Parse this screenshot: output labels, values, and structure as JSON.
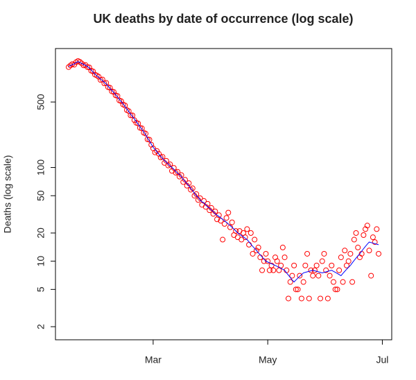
{
  "chart_data": {
    "type": "scatter",
    "title": "UK deaths by date of occurrence (log scale)",
    "y_label": "Deaths (log scale)",
    "ylog": true,
    "xlim": [
      8,
      187
    ],
    "ylim": [
      1.45,
      1860
    ],
    "xticks": [
      {
        "value": 60,
        "label": "Mar"
      },
      {
        "value": 121,
        "label": "May"
      },
      {
        "value": 182,
        "label": "Jul"
      }
    ],
    "yticks": [
      2,
      5,
      10,
      20,
      50,
      100,
      500
    ],
    "x": [
      15,
      16,
      17,
      18,
      19,
      20,
      21,
      22,
      23,
      24,
      25,
      26,
      27,
      28,
      29,
      30,
      31,
      32,
      33,
      34,
      35,
      36,
      37,
      38,
      39,
      40,
      41,
      42,
      43,
      44,
      45,
      46,
      47,
      48,
      49,
      50,
      51,
      52,
      53,
      54,
      55,
      56,
      57,
      58,
      59,
      60,
      61,
      62,
      63,
      64,
      65,
      66,
      67,
      68,
      69,
      70,
      71,
      72,
      73,
      74,
      75,
      76,
      77,
      78,
      79,
      80,
      81,
      82,
      83,
      84,
      85,
      86,
      87,
      88,
      89,
      90,
      91,
      92,
      93,
      94,
      95,
      96,
      97,
      98,
      99,
      100,
      101,
      102,
      103,
      104,
      105,
      106,
      107,
      108,
      109,
      110,
      111,
      112,
      113,
      114,
      115,
      116,
      117,
      118,
      119,
      120,
      121,
      122,
      123,
      124,
      125,
      126,
      127,
      128,
      129,
      130,
      131,
      132,
      133,
      134,
      135,
      136,
      137,
      138,
      139,
      140,
      141,
      142,
      143,
      144,
      145,
      146,
      147,
      148,
      149,
      150,
      151,
      152,
      153,
      154,
      155,
      156,
      157,
      158,
      159,
      160,
      161,
      162,
      163,
      164,
      165,
      166,
      167,
      168,
      169,
      170,
      171,
      172,
      173,
      174,
      175,
      176,
      177,
      178,
      179,
      180
    ],
    "series": [
      {
        "type": "scatter",
        "color": "#ff0000",
        "values": [
          1180,
          1230,
          1270,
          1250,
          1330,
          1370,
          1340,
          1290,
          1230,
          1240,
          1180,
          1170,
          1080,
          1060,
          980,
          960,
          930,
          860,
          870,
          790,
          800,
          720,
          710,
          650,
          640,
          590,
          580,
          520,
          510,
          470,
          460,
          410,
          400,
          360,
          360,
          320,
          300,
          295,
          265,
          262,
          235,
          230,
          200,
          198,
          175,
          160,
          145,
          150,
          140,
          128,
          130,
          112,
          118,
          105,
          108,
          92,
          99,
          88,
          90,
          80,
          83,
          70,
          74,
          64,
          68,
          58,
          60,
          50,
          52,
          45,
          47,
          40,
          44,
          38,
          41,
          35,
          37,
          32,
          34,
          28,
          31,
          27,
          17,
          25,
          29,
          33,
          23,
          26,
          19,
          21,
          18,
          21,
          17,
          20,
          18,
          22,
          15,
          20,
          12,
          17,
          13,
          14,
          11,
          8,
          10,
          12,
          10,
          8,
          9,
          8,
          11,
          10,
          8,
          9,
          14,
          11,
          8,
          4,
          6,
          7,
          9,
          5,
          5,
          7,
          4,
          6,
          9,
          12,
          4,
          8,
          7,
          8,
          9,
          7,
          4,
          10,
          12,
          8,
          4,
          7,
          9,
          6,
          5,
          5,
          8,
          11,
          6,
          13,
          9,
          10,
          12,
          6,
          17,
          20,
          14,
          11,
          12,
          19,
          22,
          24,
          13,
          7,
          18,
          16,
          22,
          12
        ]
      },
      {
        "type": "line",
        "color": "#0000ff",
        "values": [
          1200,
          1225,
          1250,
          1280,
          1315,
          1350,
          1318,
          1287,
          1257,
          1228,
          1200,
          1150,
          1100,
          1045,
          995,
          950,
          915,
          880,
          845,
          812,
          780,
          738,
          700,
          665,
          632,
          600,
          566,
          535,
          505,
          477,
          450,
          422,
          396,
          372,
          350,
          330,
          309,
          290,
          272,
          256,
          240,
          223,
          207,
          192,
          178,
          165,
          156,
          147,
          139,
          132,
          125,
          119,
          114,
          109,
          104,
          100,
          96,
          91,
          87,
          84,
          80,
          75,
          71,
          67,
          64,
          60,
          57,
          53,
          50,
          48,
          45,
          43,
          42,
          40,
          38,
          37,
          35,
          34,
          32,
          31,
          30,
          29,
          28,
          27,
          26,
          25,
          24,
          23,
          22,
          21,
          20,
          19.4,
          18.8,
          18.2,
          17.6,
          17,
          16.1,
          15.2,
          14.4,
          13.7,
          13,
          12.3,
          11.7,
          11.1,
          10.5,
          10,
          9.8,
          9.6,
          9.4,
          9.2,
          9,
          8.8,
          8.6,
          8.4,
          8.2,
          8,
          7.5,
          7.1,
          6.7,
          6.3,
          6,
          6.3,
          6.6,
          6.9,
          7.2,
          7.5,
          7.6,
          7.7,
          7.8,
          7.9,
          8,
          7.9,
          7.8,
          7.7,
          7.6,
          7.5,
          7.6,
          7.7,
          7.8,
          7.9,
          8,
          7.8,
          7.6,
          7.4,
          7.2,
          7,
          7.4,
          7.8,
          8.2,
          8.6,
          9,
          9.6,
          10.2,
          10.8,
          11.4,
          12,
          12.8,
          13.6,
          14.4,
          15.2,
          16,
          15.8,
          15.6,
          15.4,
          15.2,
          15
        ]
      }
    ]
  }
}
